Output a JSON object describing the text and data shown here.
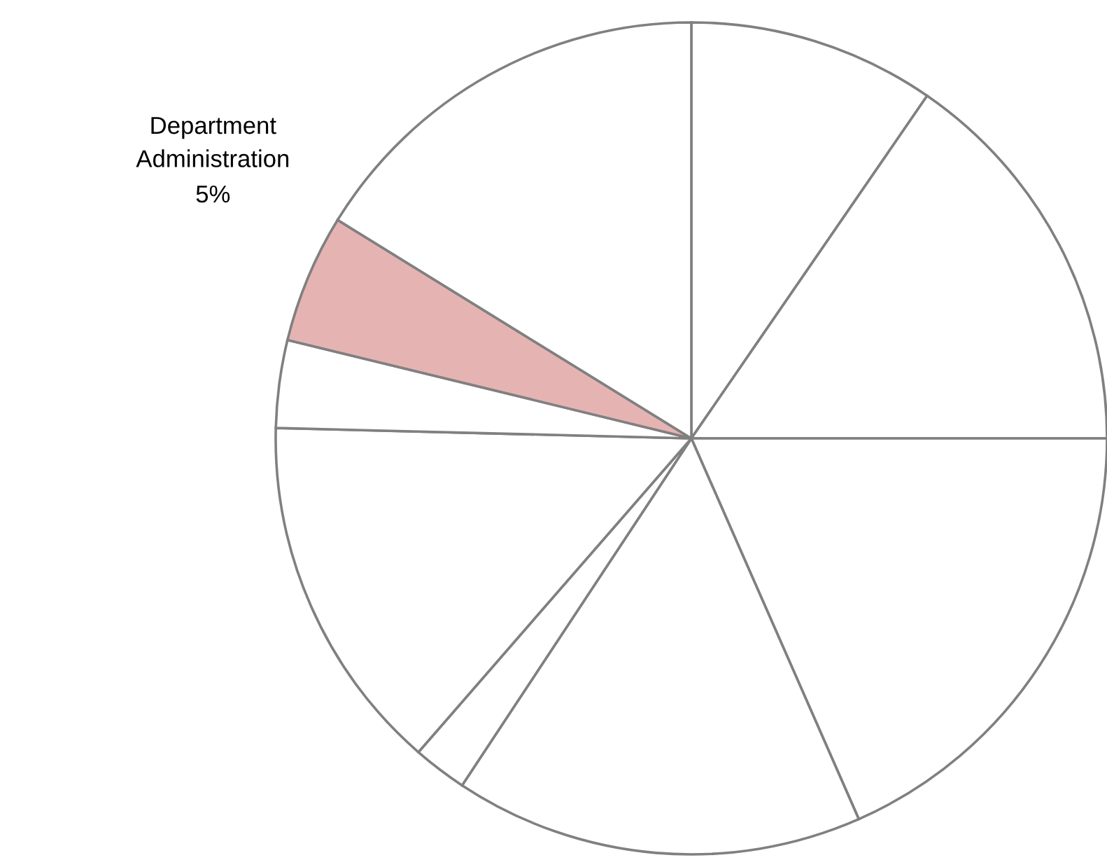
{
  "chart_data": {
    "type": "pie",
    "categories": [
      null,
      null,
      null,
      null,
      null,
      null,
      null,
      "Department\nAdministration",
      null
    ],
    "values": [
      9.6,
      15.4,
      18.4,
      15.9,
      2.1,
      14.0,
      3.4,
      5,
      16.2
    ],
    "colors": [
      "#ffffff",
      "#ffffff",
      "#ffffff",
      "#ffffff",
      "#ffffff",
      "#ffffff",
      "#ffffff",
      "#e6b3b3",
      "#ffffff"
    ],
    "value_labels": [
      null,
      null,
      null,
      null,
      null,
      null,
      null,
      "5%",
      null
    ]
  }
}
